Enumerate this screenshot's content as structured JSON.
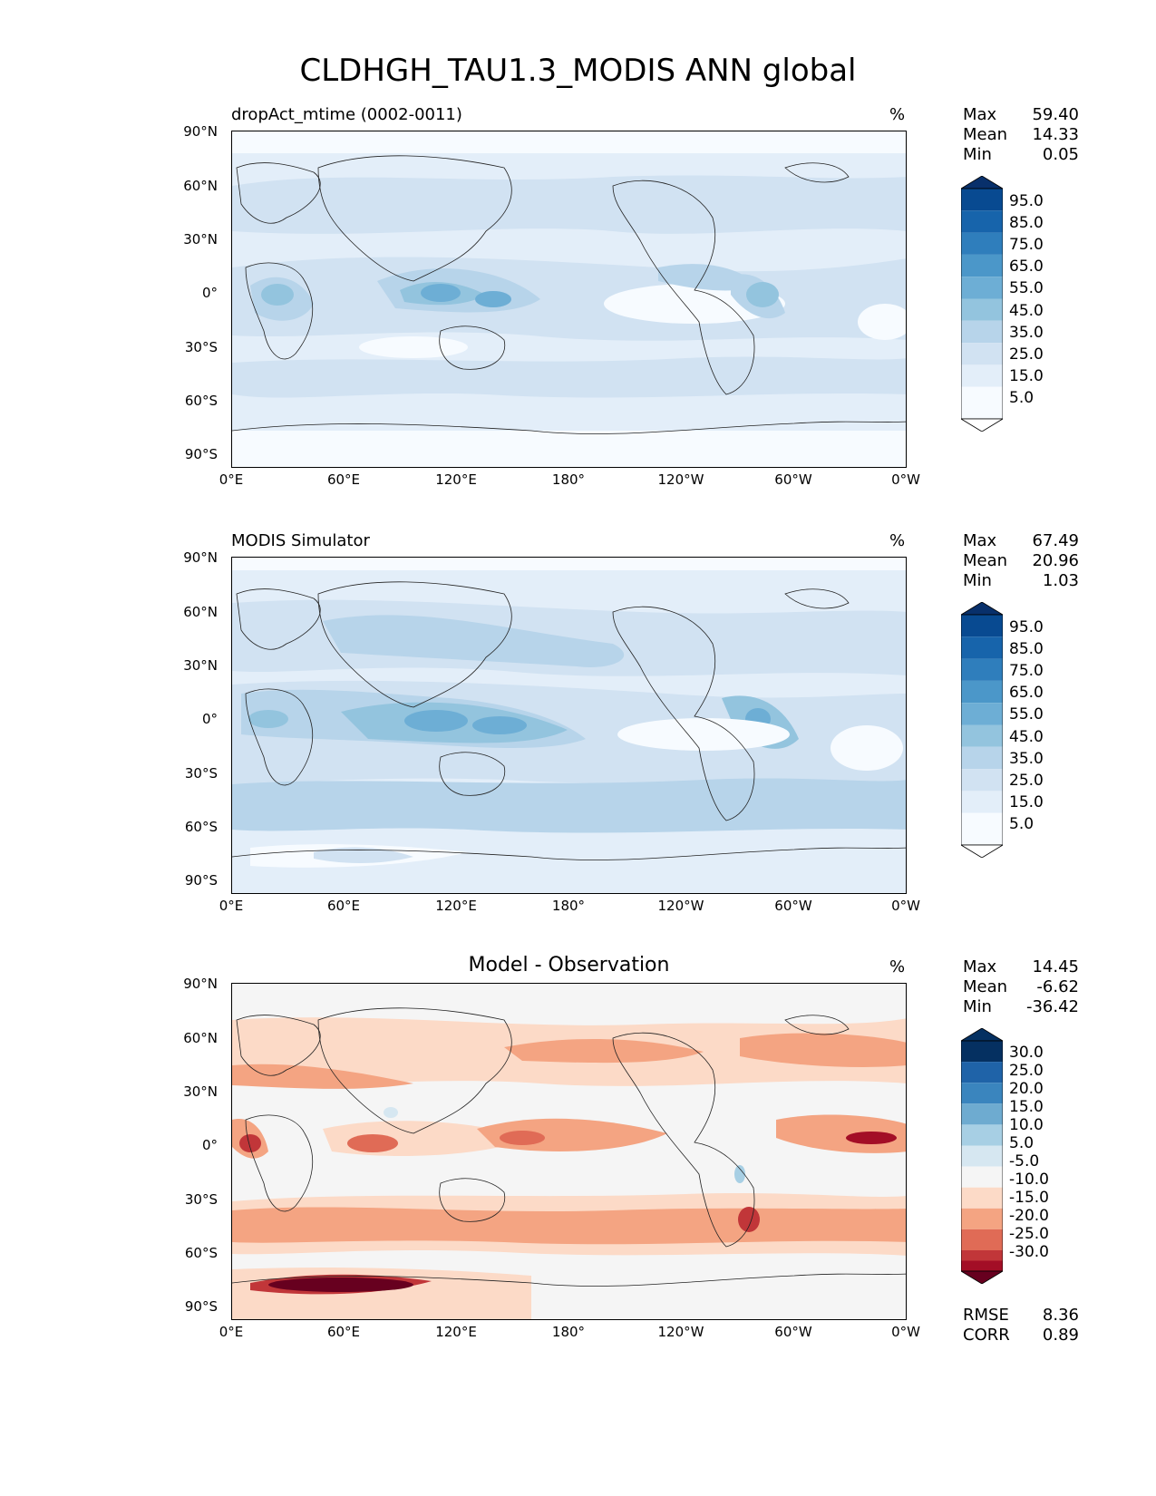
{
  "figure": {
    "title": "CLDHGH_TAU1.3_MODIS ANN global",
    "y_ticks": [
      "90°N",
      "60°N",
      "30°N",
      "0°",
      "30°S",
      "60°S",
      "90°S"
    ],
    "x_ticks": [
      "0°E",
      "60°E",
      "120°E",
      "180°",
      "120°W",
      "60°W",
      "0°W"
    ]
  },
  "panels": [
    {
      "title": "dropAct_mtime (0002-0011)",
      "units": "%",
      "stats": {
        "max_label": "Max",
        "max": "59.40",
        "mean_label": "Mean",
        "mean": "14.33",
        "min_label": "Min",
        "min": "0.05"
      },
      "colorbar": {
        "levels": [
          "95.0",
          "85.0",
          "75.0",
          "65.0",
          "55.0",
          "45.0",
          "35.0",
          "25.0",
          "15.0",
          "5.0"
        ],
        "colors": [
          "#08306b",
          "#084a91",
          "#1764ab",
          "#2f7ebc",
          "#4b97c9",
          "#6daed5",
          "#93c4de",
          "#b7d4ea",
          "#d1e2f2",
          "#e3eef9",
          "#f7fbff"
        ]
      }
    },
    {
      "title": "MODIS Simulator",
      "units": "%",
      "stats": {
        "max_label": "Max",
        "max": "67.49",
        "mean_label": "Mean",
        "mean": "20.96",
        "min_label": "Min",
        "min": "1.03"
      },
      "colorbar": {
        "levels": [
          "95.0",
          "85.0",
          "75.0",
          "65.0",
          "55.0",
          "45.0",
          "35.0",
          "25.0",
          "15.0",
          "5.0"
        ],
        "colors": [
          "#08306b",
          "#084a91",
          "#1764ab",
          "#2f7ebc",
          "#4b97c9",
          "#6daed5",
          "#93c4de",
          "#b7d4ea",
          "#d1e2f2",
          "#e3eef9",
          "#f7fbff"
        ]
      }
    },
    {
      "title": "Model - Observation",
      "units": "%",
      "stats": {
        "max_label": "Max",
        "max": "14.45",
        "mean_label": "Mean",
        "mean": "-6.62",
        "min_label": "Min",
        "min": "-36.42"
      },
      "metrics": {
        "rmse_label": "RMSE",
        "rmse": "8.36",
        "corr_label": "CORR",
        "corr": "0.89"
      },
      "colorbar": {
        "levels": [
          "30.0",
          "25.0",
          "20.0",
          "15.0",
          "10.0",
          "5.0",
          "-5.0",
          "-10.0",
          "-15.0",
          "-20.0",
          "-25.0",
          "-30.0"
        ],
        "colors": [
          "#053061",
          "#1f63a8",
          "#3a85be",
          "#6eabd0",
          "#a7cfe4",
          "#d6e7f1",
          "#f5f5f5",
          "#fcdac7",
          "#f4a482",
          "#e06b56",
          "#c13639",
          "#a30e26",
          "#67001f"
        ]
      }
    }
  ]
}
